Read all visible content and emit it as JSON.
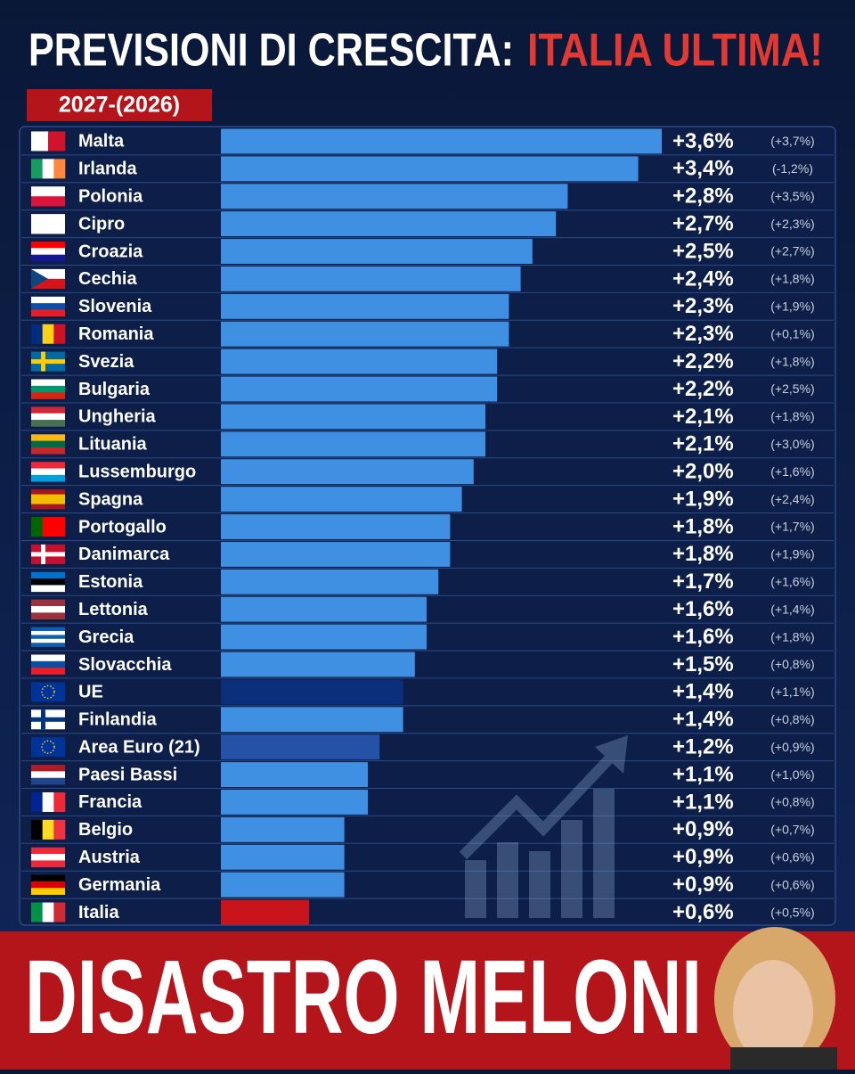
{
  "chart_data": {
    "type": "bar",
    "orientation": "horizontal",
    "title": "PREVISIONI DI CRESCITA:",
    "title_highlight": "ITALIA ULTIMA!",
    "subtitle": "2027-(2026)",
    "categories": [
      "Malta",
      "Irlanda",
      "Polonia",
      "Cipro",
      "Croazia",
      "Cechia",
      "Slovenia",
      "Romania",
      "Svezia",
      "Bulgaria",
      "Ungheria",
      "Lituania",
      "Lussemburgo",
      "Spagna",
      "Portogallo",
      "Danimarca",
      "Estonia",
      "Lettonia",
      "Grecia",
      "Slovacchia",
      "UE",
      "Finlandia",
      "Area Euro (21)",
      "Paesi Bassi",
      "Francia",
      "Belgio",
      "Austria",
      "Germania",
      "Italia"
    ],
    "values": [
      3.6,
      3.4,
      2.8,
      2.7,
      2.5,
      2.4,
      2.3,
      2.3,
      2.2,
      2.2,
      2.1,
      2.1,
      2.0,
      1.9,
      1.8,
      1.8,
      1.7,
      1.6,
      1.6,
      1.5,
      1.4,
      1.4,
      1.2,
      1.1,
      1.1,
      0.9,
      0.9,
      0.9,
      0.6
    ],
    "value_labels": [
      "+3,6%",
      "+3,4%",
      "+2,8%",
      "+2,7%",
      "+2,5%",
      "+2,4%",
      "+2,3%",
      "+2,3%",
      "+2,2%",
      "+2,2%",
      "+2,1%",
      "+2,1%",
      "+2,0%",
      "+1,9%",
      "+1,8%",
      "+1,8%",
      "+1,7%",
      "+1,6%",
      "+1,6%",
      "+1,5%",
      "+1,4%",
      "+1,4%",
      "+1,2%",
      "+1,1%",
      "+1,1%",
      "+0,9%",
      "+0,9%",
      "+0,9%",
      "+0,6%"
    ],
    "previous_labels": [
      "(+3,7%)",
      "(-1,2%)",
      "(+3,5%)",
      "(+2,3%)",
      "(+2,7%)",
      "(+1,8%)",
      "(+1,9%)",
      "(+0,1%)",
      "(+1,8%)",
      "(+2,5%)",
      "(+1,8%)",
      "(+3,0%)",
      "(+1,6%)",
      "(+2,4%)",
      "(+1,7%)",
      "(+1,9%)",
      "(+1,6%)",
      "(+1,4%)",
      "(+1,8%)",
      "(+0,8%)",
      "(+1,1%)",
      "(+0,8%)",
      "(+0,9%)",
      "(+1,0%)",
      "(+0,8%)",
      "(+0,7%)",
      "(+0,6%)",
      "(+0,6%)",
      "(+0,5%)"
    ],
    "color": "#3f8fe3",
    "colors": [
      "#3f8fe3",
      "#3f8fe3",
      "#3f8fe3",
      "#3f8fe3",
      "#3f8fe3",
      "#3f8fe3",
      "#3f8fe3",
      "#3f8fe3",
      "#3f8fe3",
      "#3f8fe3",
      "#3f8fe3",
      "#3f8fe3",
      "#3f8fe3",
      "#3f8fe3",
      "#3f8fe3",
      "#3f8fe3",
      "#3f8fe3",
      "#3f8fe3",
      "#3f8fe3",
      "#3f8fe3",
      "#0c2f7c",
      "#3f8fe3",
      "#2552a6",
      "#3f8fe3",
      "#3f8fe3",
      "#3f8fe3",
      "#3f8fe3",
      "#3f8fe3",
      "#c8141a"
    ],
    "xlim": [
      -0.15,
      3.6
    ]
  },
  "banner": "DISASTRO MELONI"
}
